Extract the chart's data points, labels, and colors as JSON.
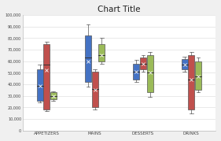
{
  "title": "Chart Title",
  "categories": [
    "APPETIZERS",
    "MAINS",
    "DESSERTS",
    "DRINKS"
  ],
  "colors": [
    "#4472C4",
    "#C0504D",
    "#9BBB59"
  ],
  "boxes": {
    "APPETIZERS": [
      {
        "q1": 26000,
        "median": 39000,
        "q3": 53000,
        "whisker_low": 24000,
        "whisker_high": 57000,
        "mean": 39000
      },
      {
        "q1": 18000,
        "median": 57000,
        "q3": 75000,
        "whisker_low": 17000,
        "whisker_high": 77000,
        "mean": 52000
      },
      {
        "q1": 27000,
        "median": 30000,
        "q3": 33000,
        "whisker_low": 26000,
        "whisker_high": 34000,
        "mean": 30000
      }
    ],
    "MAINS": [
      {
        "q1": 42000,
        "median": 63000,
        "q3": 82000,
        "whisker_low": 38000,
        "whisker_high": 92000,
        "mean": 60000
      },
      {
        "q1": 20000,
        "median": 36000,
        "q3": 51000,
        "whisker_low": 18000,
        "whisker_high": 53000,
        "mean": 35000
      },
      {
        "q1": 60000,
        "median": 65000,
        "q3": 75000,
        "whisker_low": 58000,
        "whisker_high": 80000,
        "mean": 65000
      }
    ],
    "DESSERTS": [
      {
        "q1": 44000,
        "median": 51000,
        "q3": 58000,
        "whisker_low": 42000,
        "whisker_high": 61000,
        "mean": 51000
      },
      {
        "q1": 53000,
        "median": 58000,
        "q3": 63000,
        "whisker_low": 51000,
        "whisker_high": 65000,
        "mean": 58000
      },
      {
        "q1": 33000,
        "median": 50000,
        "q3": 65000,
        "whisker_low": 29000,
        "whisker_high": 68000,
        "mean": 50000
      }
    ],
    "DRINKS": [
      {
        "q1": 53000,
        "median": 57000,
        "q3": 62000,
        "whisker_low": 51000,
        "whisker_high": 64000,
        "mean": 57000
      },
      {
        "q1": 18000,
        "median": 44000,
        "q3": 65000,
        "whisker_low": 15000,
        "whisker_high": 68000,
        "mean": 44000
      },
      {
        "q1": 35000,
        "median": 47000,
        "q3": 60000,
        "whisker_low": 33000,
        "whisker_high": 63000,
        "mean": 47000
      }
    ]
  },
  "ylim": [
    0,
    100000
  ],
  "yticks": [
    0,
    10000,
    20000,
    30000,
    40000,
    50000,
    60000,
    70000,
    80000,
    90000,
    100000
  ],
  "ytick_labels": [
    "0",
    "10,000",
    "20,000",
    "30,000",
    "40,000",
    "50,000",
    "60,000",
    "70,000",
    "80,000",
    "90,000",
    "100,000"
  ],
  "background_color": "#f0f0f0",
  "plot_bg": "#ffffff",
  "box_width": 0.13,
  "offsets": [
    -0.14,
    0,
    0.14
  ]
}
